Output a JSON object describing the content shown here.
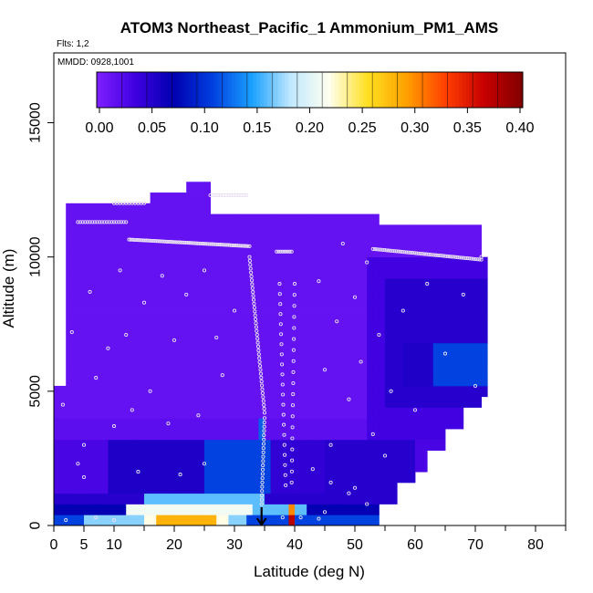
{
  "chart_data": {
    "type": "heatmap",
    "title": "ATOM3 Northeast_Pacific_1 Ammonium_PM1_AMS",
    "flights_label": "Flts: 1,2",
    "dates_label": "MMDD: 0928,1001",
    "xlabel": "Latitude (deg N)",
    "ylabel": "Altitude (m)",
    "xlim": [
      0,
      85
    ],
    "ylim": [
      0,
      17600
    ],
    "x_ticks": [
      0,
      5,
      10,
      20,
      30,
      40,
      50,
      60,
      70,
      80
    ],
    "x_tick_labels": [
      "0",
      "5",
      "10",
      "20",
      "30",
      "40",
      "50",
      "60",
      "70",
      "80"
    ],
    "y_ticks": [
      0,
      5000,
      10000,
      15000
    ],
    "y_tick_labels": [
      "0",
      "5000",
      "10000",
      "15000"
    ],
    "colorbar": {
      "min": 0.0,
      "max": 0.4,
      "ticks": [
        0.0,
        0.05,
        0.1,
        0.15,
        0.2,
        0.25,
        0.3,
        0.35,
        0.4
      ],
      "tick_labels": [
        "0.00",
        "0.05",
        "0.10",
        "0.15",
        "0.20",
        "0.25",
        "0.30",
        "0.35",
        "0.40"
      ],
      "colors": [
        "#7f1fff",
        "#3f00e0",
        "#0000b0",
        "#0040e0",
        "#1aa0ff",
        "#bfe8ff",
        "#fffff0",
        "#ffe020",
        "#ffa000",
        "#ff4000",
        "#c80000",
        "#800000"
      ]
    },
    "marker_latitude": 34.5,
    "grid": false
  }
}
